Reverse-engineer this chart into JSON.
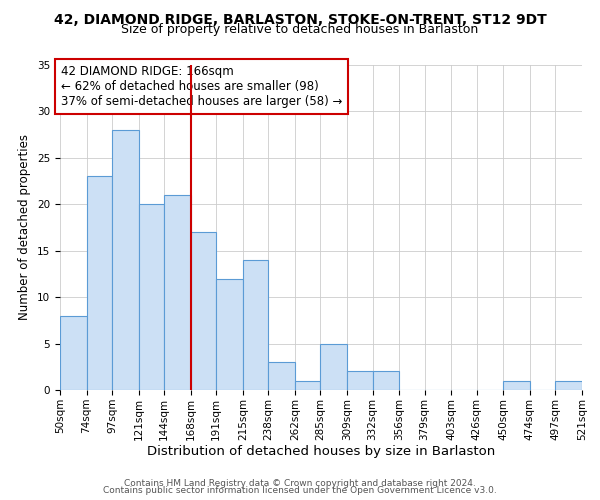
{
  "title": "42, DIAMOND RIDGE, BARLASTON, STOKE-ON-TRENT, ST12 9DT",
  "subtitle": "Size of property relative to detached houses in Barlaston",
  "xlabel": "Distribution of detached houses by size in Barlaston",
  "ylabel": "Number of detached properties",
  "bin_edges": [
    50,
    74,
    97,
    121,
    144,
    168,
    191,
    215,
    238,
    262,
    285,
    309,
    332,
    356,
    379,
    403,
    426,
    450,
    474,
    497,
    521
  ],
  "bin_labels": [
    "50sqm",
    "74sqm",
    "97sqm",
    "121sqm",
    "144sqm",
    "168sqm",
    "191sqm",
    "215sqm",
    "238sqm",
    "262sqm",
    "285sqm",
    "309sqm",
    "332sqm",
    "356sqm",
    "379sqm",
    "403sqm",
    "426sqm",
    "450sqm",
    "474sqm",
    "497sqm",
    "521sqm"
  ],
  "counts": [
    8,
    23,
    28,
    20,
    21,
    17,
    12,
    14,
    3,
    1,
    5,
    2,
    2,
    0,
    0,
    0,
    0,
    1,
    0,
    1
  ],
  "bar_face_color": "#cce0f5",
  "bar_edge_color": "#5b9bd5",
  "vline_x": 168,
  "vline_color": "#cc0000",
  "annotation_text": "42 DIAMOND RIDGE: 166sqm\n← 62% of detached houses are smaller (98)\n37% of semi-detached houses are larger (58) →",
  "annotation_box_edge": "#cc0000",
  "annotation_fontsize": 8.5,
  "ylim": [
    0,
    35
  ],
  "yticks": [
    0,
    5,
    10,
    15,
    20,
    25,
    30,
    35
  ],
  "footer_line1": "Contains HM Land Registry data © Crown copyright and database right 2024.",
  "footer_line2": "Contains public sector information licensed under the Open Government Licence v3.0.",
  "bg_color": "#ffffff",
  "grid_color": "#cccccc",
  "title_fontsize": 10,
  "subtitle_fontsize": 9,
  "xlabel_fontsize": 9.5,
  "ylabel_fontsize": 8.5,
  "tick_fontsize": 7.5,
  "footer_fontsize": 6.5
}
